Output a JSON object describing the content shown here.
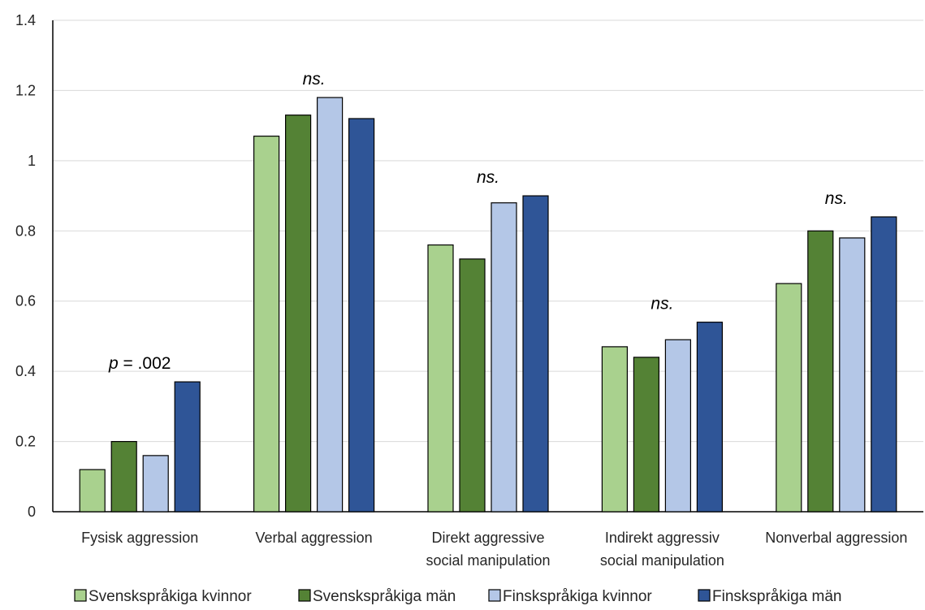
{
  "chart_data": {
    "type": "bar",
    "categories": [
      [
        "Fysisk aggression"
      ],
      [
        "Verbal aggression"
      ],
      [
        "Direkt aggressive",
        "social manipulation"
      ],
      [
        "Indirekt aggressiv",
        "social manipulation"
      ],
      [
        "Nonverbal aggression"
      ]
    ],
    "series": [
      {
        "name": "Svenskspråkiga kvinnor",
        "color": "#a9d18e",
        "values": [
          0.12,
          1.07,
          0.76,
          0.47,
          0.65
        ]
      },
      {
        "name": "Svenskspråkiga män",
        "color": "#548235",
        "values": [
          0.2,
          1.13,
          0.72,
          0.44,
          0.8
        ]
      },
      {
        "name": "Finskspråkiga kvinnor",
        "color": "#b4c7e7",
        "values": [
          0.16,
          1.18,
          0.88,
          0.49,
          0.78
        ]
      },
      {
        "name": "Finskspråkiga män",
        "color": "#2f5597",
        "values": [
          0.37,
          1.12,
          0.9,
          0.54,
          0.84
        ]
      }
    ],
    "annotations": [
      {
        "category_index": 0,
        "italic_part": "p",
        "text": " = .002"
      },
      {
        "category_index": 1,
        "italic_part": "ns.",
        "text": ""
      },
      {
        "category_index": 2,
        "italic_part": "ns.",
        "text": ""
      },
      {
        "category_index": 3,
        "italic_part": "ns.",
        "text": ""
      },
      {
        "category_index": 4,
        "italic_part": "ns.",
        "text": ""
      }
    ],
    "y_ticks": [
      "0",
      "0.2",
      "0.4",
      "0.6",
      "0.8",
      "1",
      "1.2",
      "1.4"
    ],
    "ylim": [
      0,
      1.4
    ],
    "grid": true,
    "legend_position": "bottom",
    "title": "",
    "xlabel": "",
    "ylabel": ""
  }
}
